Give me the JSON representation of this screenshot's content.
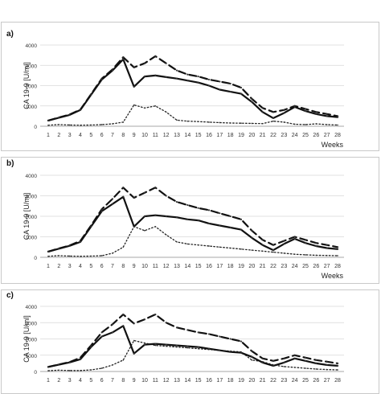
{
  "chart_data": [
    {
      "type": "line",
      "panel_label": "a)",
      "ylabel": "CA 19-9 [U/ml]",
      "xlabel": "Weeks",
      "ylim": [
        0,
        4000
      ],
      "yticks": [
        "0",
        "1000",
        "2000",
        "3000",
        "4000"
      ],
      "categories": [
        "1",
        "2",
        "3",
        "4",
        "5",
        "6",
        "7",
        "8",
        "9",
        "10",
        "11",
        "12",
        "13",
        "14",
        "15",
        "16",
        "17",
        "18",
        "19",
        "20",
        "21",
        "22",
        "23",
        "24",
        "25",
        "26",
        "27",
        "28"
      ],
      "grid": true,
      "series": [
        {
          "style": "solid",
          "values": [
            280,
            420,
            560,
            800,
            1550,
            2300,
            2750,
            3300,
            1950,
            2450,
            2500,
            2420,
            2350,
            2250,
            2150,
            2000,
            1800,
            1700,
            1600,
            1200,
            700,
            400,
            650,
            950,
            750,
            600,
            500,
            450
          ]
        },
        {
          "style": "dashed",
          "values": [
            280,
            430,
            580,
            820,
            1580,
            2350,
            2800,
            3400,
            2900,
            3100,
            3450,
            3100,
            2750,
            2550,
            2450,
            2300,
            2200,
            2100,
            1900,
            1350,
            900,
            700,
            800,
            1000,
            850,
            700,
            600,
            500
          ]
        },
        {
          "style": "dotted",
          "values": [
            50,
            80,
            60,
            50,
            60,
            80,
            120,
            200,
            1050,
            900,
            1000,
            700,
            300,
            250,
            230,
            200,
            180,
            160,
            150,
            140,
            130,
            250,
            200,
            100,
            80,
            120,
            80,
            60
          ]
        }
      ]
    },
    {
      "type": "line",
      "panel_label": "b)",
      "ylabel": "CA 19-9 [U/ml]",
      "xlabel": "Weeks",
      "ylim": [
        0,
        4000
      ],
      "yticks": [
        "0",
        "1000",
        "2000",
        "3000",
        "4000"
      ],
      "categories": [
        "1",
        "2",
        "3",
        "4",
        "5",
        "6",
        "7",
        "8",
        "9",
        "10",
        "11",
        "12",
        "13",
        "14",
        "15",
        "16",
        "17",
        "18",
        "19",
        "20",
        "21",
        "22",
        "23",
        "24",
        "25",
        "26",
        "27",
        "28"
      ],
      "grid": true,
      "series": [
        {
          "style": "solid",
          "values": [
            280,
            420,
            560,
            750,
            1500,
            2250,
            2600,
            2950,
            1500,
            2000,
            2050,
            2000,
            1950,
            1850,
            1800,
            1650,
            1550,
            1450,
            1350,
            950,
            600,
            350,
            650,
            900,
            700,
            550,
            450,
            400
          ]
        },
        {
          "style": "dashed",
          "values": [
            280,
            430,
            580,
            800,
            1550,
            2350,
            2850,
            3400,
            2900,
            3150,
            3400,
            3000,
            2700,
            2550,
            2400,
            2300,
            2150,
            2000,
            1850,
            1300,
            850,
            600,
            800,
            1000,
            850,
            700,
            600,
            500
          ]
        },
        {
          "style": "dotted",
          "values": [
            50,
            80,
            60,
            50,
            60,
            80,
            200,
            500,
            1500,
            1300,
            1500,
            1100,
            750,
            650,
            600,
            550,
            500,
            450,
            400,
            350,
            300,
            250,
            200,
            150,
            120,
            100,
            90,
            80
          ]
        }
      ]
    },
    {
      "type": "line",
      "panel_label": "c)",
      "ylabel": "CA 19-9 [U/ml]",
      "xlabel": "",
      "ylim": [
        0,
        4000
      ],
      "yticks": [
        "0",
        "1000",
        "2000",
        "3000",
        "4000"
      ],
      "categories": [
        "1",
        "2",
        "3",
        "4",
        "5",
        "6",
        "7",
        "8",
        "9",
        "10",
        "11",
        "12",
        "13",
        "14",
        "15",
        "16",
        "17",
        "18",
        "19",
        "20",
        "21",
        "22",
        "23",
        "24",
        "25",
        "26",
        "27",
        "28"
      ],
      "grid": true,
      "series": [
        {
          "style": "solid",
          "values": [
            280,
            420,
            560,
            750,
            1500,
            2150,
            2400,
            2800,
            1100,
            1650,
            1700,
            1650,
            1600,
            1550,
            1500,
            1400,
            1300,
            1200,
            1150,
            900,
            550,
            350,
            550,
            800,
            650,
            500,
            400,
            350
          ]
        },
        {
          "style": "dashed",
          "values": [
            280,
            430,
            580,
            850,
            1600,
            2400,
            2900,
            3500,
            2950,
            3200,
            3500,
            3000,
            2700,
            2550,
            2400,
            2300,
            2150,
            2000,
            1850,
            1250,
            800,
            650,
            800,
            1000,
            850,
            700,
            600,
            500
          ]
        },
        {
          "style": "dotted",
          "values": [
            50,
            80,
            60,
            60,
            100,
            200,
            400,
            700,
            1900,
            1750,
            1600,
            1550,
            1500,
            1450,
            1400,
            1350,
            1300,
            1250,
            1200,
            700,
            600,
            400,
            300,
            250,
            200,
            150,
            120,
            100
          ]
        }
      ]
    }
  ]
}
